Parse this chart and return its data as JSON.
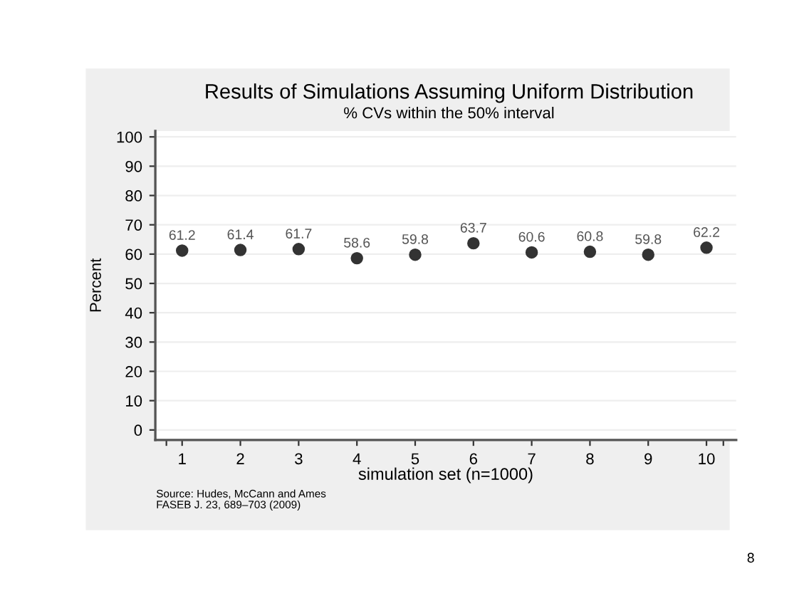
{
  "chart_data": {
    "type": "scatter",
    "title": "Results of Simulations Assuming Uniform Distribution",
    "subtitle": "% CVs within the 50% interval",
    "xlabel": "simulation set (n=1000)",
    "ylabel": "Percent",
    "x": [
      1,
      2,
      3,
      4,
      5,
      6,
      7,
      8,
      9,
      10
    ],
    "series": [
      {
        "color": "#333333",
        "values": [
          61.2,
          61.4,
          61.7,
          58.6,
          59.8,
          63.7,
          60.6,
          60.8,
          59.8,
          62.2
        ]
      }
    ],
    "data_labels": true,
    "marker": "circle",
    "xlim": [
      0.54,
      10.51
    ],
    "xticks": [
      {
        "value": 0.73,
        "label": null
      },
      1,
      2,
      3,
      4,
      5,
      6,
      7,
      8,
      9,
      10,
      {
        "value": 10.29,
        "label": null
      }
    ],
    "ylim": [
      -3.4,
      102
    ],
    "yticks": [
      0,
      10,
      20,
      30,
      40,
      50,
      60,
      70,
      80,
      90,
      100
    ],
    "grid": "y",
    "legend": false,
    "annotations": [
      "Source: Hudes, McCann and Ames\nFASEB J. 23, 689–703 (2009)",
      "8"
    ]
  }
}
